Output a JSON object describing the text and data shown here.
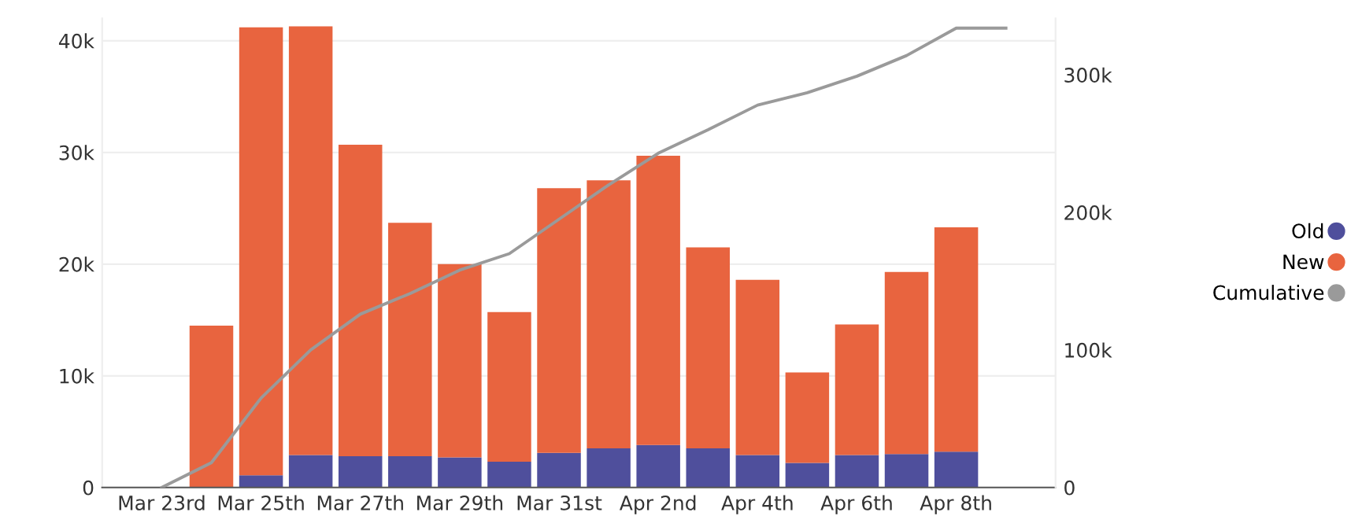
{
  "chart_data": {
    "type": "bar",
    "stacked": true,
    "categories": [
      "Mar 23rd",
      null,
      "Mar 25th",
      null,
      "Mar 27th",
      null,
      "Mar 29th",
      null,
      "Mar 31st",
      null,
      "Apr 2nd",
      null,
      "Apr 4th",
      null,
      "Apr 6th",
      null,
      "Apr 8th",
      null
    ],
    "series": [
      {
        "name": "Old",
        "color": "#4f4f9c",
        "values": [
          null,
          0,
          1100,
          2900,
          2800,
          2800,
          2700,
          2300,
          3100,
          3500,
          3800,
          3500,
          2900,
          2200,
          2900,
          3000,
          3200,
          null
        ]
      },
      {
        "name": "New",
        "color": "#e8643f",
        "values": [
          null,
          14500,
          40100,
          38400,
          27900,
          20900,
          17300,
          13400,
          23700,
          24000,
          25900,
          18000,
          15700,
          8100,
          11700,
          16300,
          20100,
          null
        ]
      },
      {
        "name": "Cumulative",
        "type": "line",
        "axis": "y2",
        "color": "#9a9a9a",
        "values": [
          0,
          18000,
          65000,
          100000,
          126000,
          141000,
          158000,
          170000,
          195000,
          220000,
          243000,
          260000,
          278000,
          287000,
          299000,
          314000,
          334000,
          334000
        ]
      }
    ],
    "ylim": [
      0,
      42000
    ],
    "yticks": [
      0,
      {
        "value": 10000,
        "label": "10k"
      },
      {
        "value": 20000,
        "label": "20k"
      },
      {
        "value": 30000,
        "label": "30k"
      },
      {
        "value": 40000,
        "label": "40k"
      }
    ],
    "y2lim": [
      0,
      341000
    ],
    "y2ticks": [
      0,
      {
        "value": 100000,
        "label": "100k"
      },
      {
        "value": 200000,
        "label": "200k"
      },
      {
        "value": 300000,
        "label": "300k"
      }
    ],
    "grid": "y",
    "legend": "right"
  }
}
